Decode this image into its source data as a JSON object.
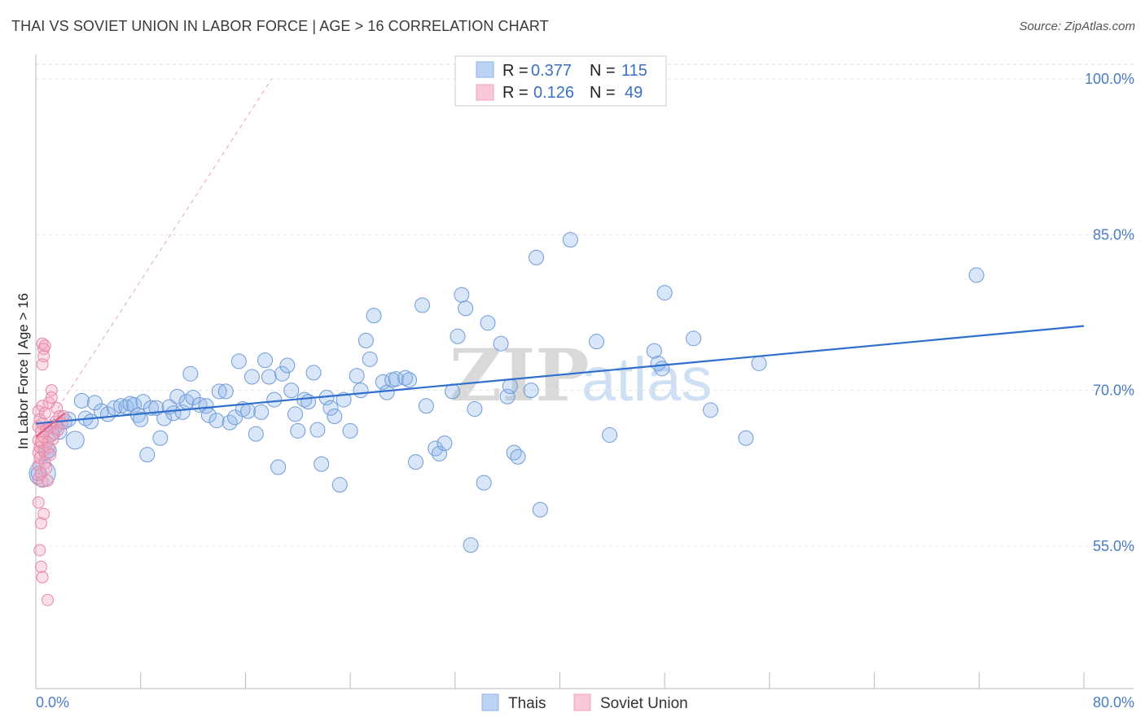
{
  "title": "THAI VS SOVIET UNION IN LABOR FORCE | AGE > 16 CORRELATION CHART",
  "source": "Source: ZipAtlas.com",
  "watermark": {
    "zip": "ZIP",
    "atlas": "atlas"
  },
  "colors": {
    "thais": "#8fb6ea",
    "thais_line": "#2f6fcd",
    "soviet": "#f3a3bd",
    "soviet_line": "#e0608a",
    "tick": "#4a7cc4"
  },
  "legend": {
    "r_label": "R =",
    "n_label": "N =",
    "rows": [
      {
        "r": "0.377",
        "n": "115"
      },
      {
        "r": "0.126",
        "n": "49"
      }
    ]
  },
  "chart_data": {
    "type": "scatter",
    "ylabel": "In Labor Force | Age > 16",
    "xlim": [
      0,
      80
    ],
    "ylim": [
      40,
      102
    ],
    "x_tick_labels": [
      "0.0%",
      "80.0%"
    ],
    "y_ticks": [
      {
        "value": 100,
        "label": "100.0%"
      },
      {
        "value": 85,
        "label": "85.0%"
      },
      {
        "value": 70,
        "label": "70.0%"
      },
      {
        "value": 55,
        "label": "55.0%"
      }
    ],
    "grid": true,
    "series": [
      {
        "name": "Thais",
        "trend": [
          [
            0,
            66.8
          ],
          [
            80,
            76.2
          ]
        ],
        "points": [
          [
            0.5,
            62.0
          ],
          [
            0.8,
            64.0
          ],
          [
            1.2,
            65.8
          ],
          [
            1.5,
            66.5
          ],
          [
            2.2,
            67.0
          ],
          [
            2.5,
            67.2
          ],
          [
            3.0,
            65.2
          ],
          [
            3.5,
            69.0
          ],
          [
            3.8,
            67.3
          ],
          [
            4.2,
            67.0
          ],
          [
            4.5,
            68.8
          ],
          [
            5.0,
            68.0
          ],
          [
            5.5,
            67.7
          ],
          [
            6.0,
            68.3
          ],
          [
            6.5,
            68.5
          ],
          [
            6.9,
            68.4
          ],
          [
            7.2,
            68.7
          ],
          [
            7.5,
            68.6
          ],
          [
            7.8,
            67.6
          ],
          [
            8.0,
            67.2
          ],
          [
            8.2,
            68.9
          ],
          [
            8.5,
            63.8
          ],
          [
            8.8,
            68.3
          ],
          [
            9.2,
            68.3
          ],
          [
            9.5,
            65.4
          ],
          [
            9.8,
            67.3
          ],
          [
            10.2,
            68.4
          ],
          [
            10.5,
            67.8
          ],
          [
            10.8,
            69.4
          ],
          [
            11.2,
            67.9
          ],
          [
            11.5,
            68.9
          ],
          [
            11.8,
            71.6
          ],
          [
            12.0,
            69.3
          ],
          [
            12.5,
            68.6
          ],
          [
            13.0,
            68.5
          ],
          [
            13.2,
            67.6
          ],
          [
            13.8,
            67.1
          ],
          [
            14.0,
            69.9
          ],
          [
            14.5,
            69.9
          ],
          [
            14.8,
            66.9
          ],
          [
            15.2,
            67.4
          ],
          [
            15.5,
            72.8
          ],
          [
            15.8,
            68.2
          ],
          [
            16.2,
            68.0
          ],
          [
            16.5,
            71.3
          ],
          [
            16.8,
            65.8
          ],
          [
            17.2,
            67.9
          ],
          [
            17.5,
            72.9
          ],
          [
            17.8,
            71.3
          ],
          [
            18.2,
            69.1
          ],
          [
            18.5,
            62.6
          ],
          [
            18.8,
            71.6
          ],
          [
            19.2,
            72.4
          ],
          [
            19.5,
            70.0
          ],
          [
            19.8,
            67.7
          ],
          [
            20.0,
            66.1
          ],
          [
            20.5,
            69.1
          ],
          [
            20.8,
            68.9
          ],
          [
            21.2,
            71.7
          ],
          [
            21.5,
            66.2
          ],
          [
            21.8,
            62.9
          ],
          [
            22.2,
            69.3
          ],
          [
            22.5,
            68.3
          ],
          [
            22.8,
            67.5
          ],
          [
            23.2,
            60.9
          ],
          [
            23.5,
            69.1
          ],
          [
            24.0,
            66.1
          ],
          [
            24.5,
            71.4
          ],
          [
            24.8,
            70.0
          ],
          [
            25.2,
            74.8
          ],
          [
            25.5,
            73.0
          ],
          [
            25.8,
            77.2
          ],
          [
            26.5,
            70.8
          ],
          [
            26.8,
            69.8
          ],
          [
            27.2,
            71.0
          ],
          [
            27.5,
            71.1
          ],
          [
            28.2,
            71.2
          ],
          [
            28.5,
            71.0
          ],
          [
            29.0,
            63.1
          ],
          [
            29.5,
            78.2
          ],
          [
            29.8,
            68.5
          ],
          [
            30.5,
            64.4
          ],
          [
            30.8,
            63.9
          ],
          [
            31.2,
            64.9
          ],
          [
            31.8,
            69.9
          ],
          [
            32.2,
            75.2
          ],
          [
            32.5,
            79.2
          ],
          [
            32.8,
            77.9
          ],
          [
            33.2,
            55.1
          ],
          [
            33.5,
            68.2
          ],
          [
            34.2,
            61.1
          ],
          [
            34.5,
            76.5
          ],
          [
            35.5,
            74.5
          ],
          [
            36.0,
            69.4
          ],
          [
            36.2,
            70.4
          ],
          [
            36.5,
            64.0
          ],
          [
            36.8,
            63.6
          ],
          [
            37.8,
            70.0
          ],
          [
            38.2,
            82.8
          ],
          [
            38.5,
            58.5
          ],
          [
            40.8,
            84.5
          ],
          [
            42.8,
            74.7
          ],
          [
            43.8,
            65.7
          ],
          [
            47.2,
            73.8
          ],
          [
            47.5,
            72.6
          ],
          [
            47.8,
            72.1
          ],
          [
            48.0,
            79.4
          ],
          [
            50.2,
            75.0
          ],
          [
            51.5,
            68.1
          ],
          [
            54.2,
            65.4
          ],
          [
            55.2,
            72.6
          ],
          [
            71.8,
            81.1
          ],
          [
            0.2,
            62.0
          ],
          [
            1.0,
            64.2
          ],
          [
            1.8,
            66.0
          ]
        ]
      },
      {
        "name": "Soviet Union",
        "trend": [
          [
            0,
            65.5
          ],
          [
            2.2,
            67.8
          ]
        ],
        "points": [
          [
            0.2,
            68.0
          ],
          [
            0.2,
            66.5
          ],
          [
            0.2,
            65.2
          ],
          [
            0.2,
            64.0
          ],
          [
            0.2,
            62.8
          ],
          [
            0.2,
            61.5
          ],
          [
            0.2,
            59.2
          ],
          [
            0.3,
            67.2
          ],
          [
            0.3,
            64.5
          ],
          [
            0.3,
            63.5
          ],
          [
            0.3,
            54.6
          ],
          [
            0.4,
            66.0
          ],
          [
            0.4,
            65.0
          ],
          [
            0.4,
            62.0
          ],
          [
            0.4,
            57.2
          ],
          [
            0.4,
            53.0
          ],
          [
            0.5,
            74.5
          ],
          [
            0.5,
            72.5
          ],
          [
            0.5,
            68.5
          ],
          [
            0.5,
            66.8
          ],
          [
            0.5,
            61.2
          ],
          [
            0.5,
            52.0
          ],
          [
            0.6,
            74.0
          ],
          [
            0.6,
            73.3
          ],
          [
            0.6,
            65.5
          ],
          [
            0.6,
            64.2
          ],
          [
            0.6,
            58.1
          ],
          [
            0.7,
            74.3
          ],
          [
            0.7,
            67.8
          ],
          [
            0.7,
            63.0
          ],
          [
            0.8,
            66.2
          ],
          [
            0.8,
            62.5
          ],
          [
            0.9,
            65.0
          ],
          [
            0.9,
            61.3
          ],
          [
            0.9,
            49.8
          ],
          [
            1.0,
            68.8
          ],
          [
            1.0,
            64.5
          ],
          [
            1.1,
            66.5
          ],
          [
            1.1,
            63.8
          ],
          [
            1.2,
            70.0
          ],
          [
            1.2,
            69.3
          ],
          [
            1.3,
            65.3
          ],
          [
            1.4,
            65.8
          ],
          [
            1.5,
            67.0
          ],
          [
            1.6,
            68.3
          ],
          [
            1.7,
            66.2
          ],
          [
            1.8,
            67.5
          ],
          [
            2.0,
            66.8
          ],
          [
            2.1,
            67.5
          ]
        ]
      }
    ],
    "diagonal_reference": [
      [
        0,
        65.0
      ],
      [
        18,
        100.0
      ]
    ]
  },
  "bottom_legend": [
    "Thais",
    "Soviet Union"
  ]
}
